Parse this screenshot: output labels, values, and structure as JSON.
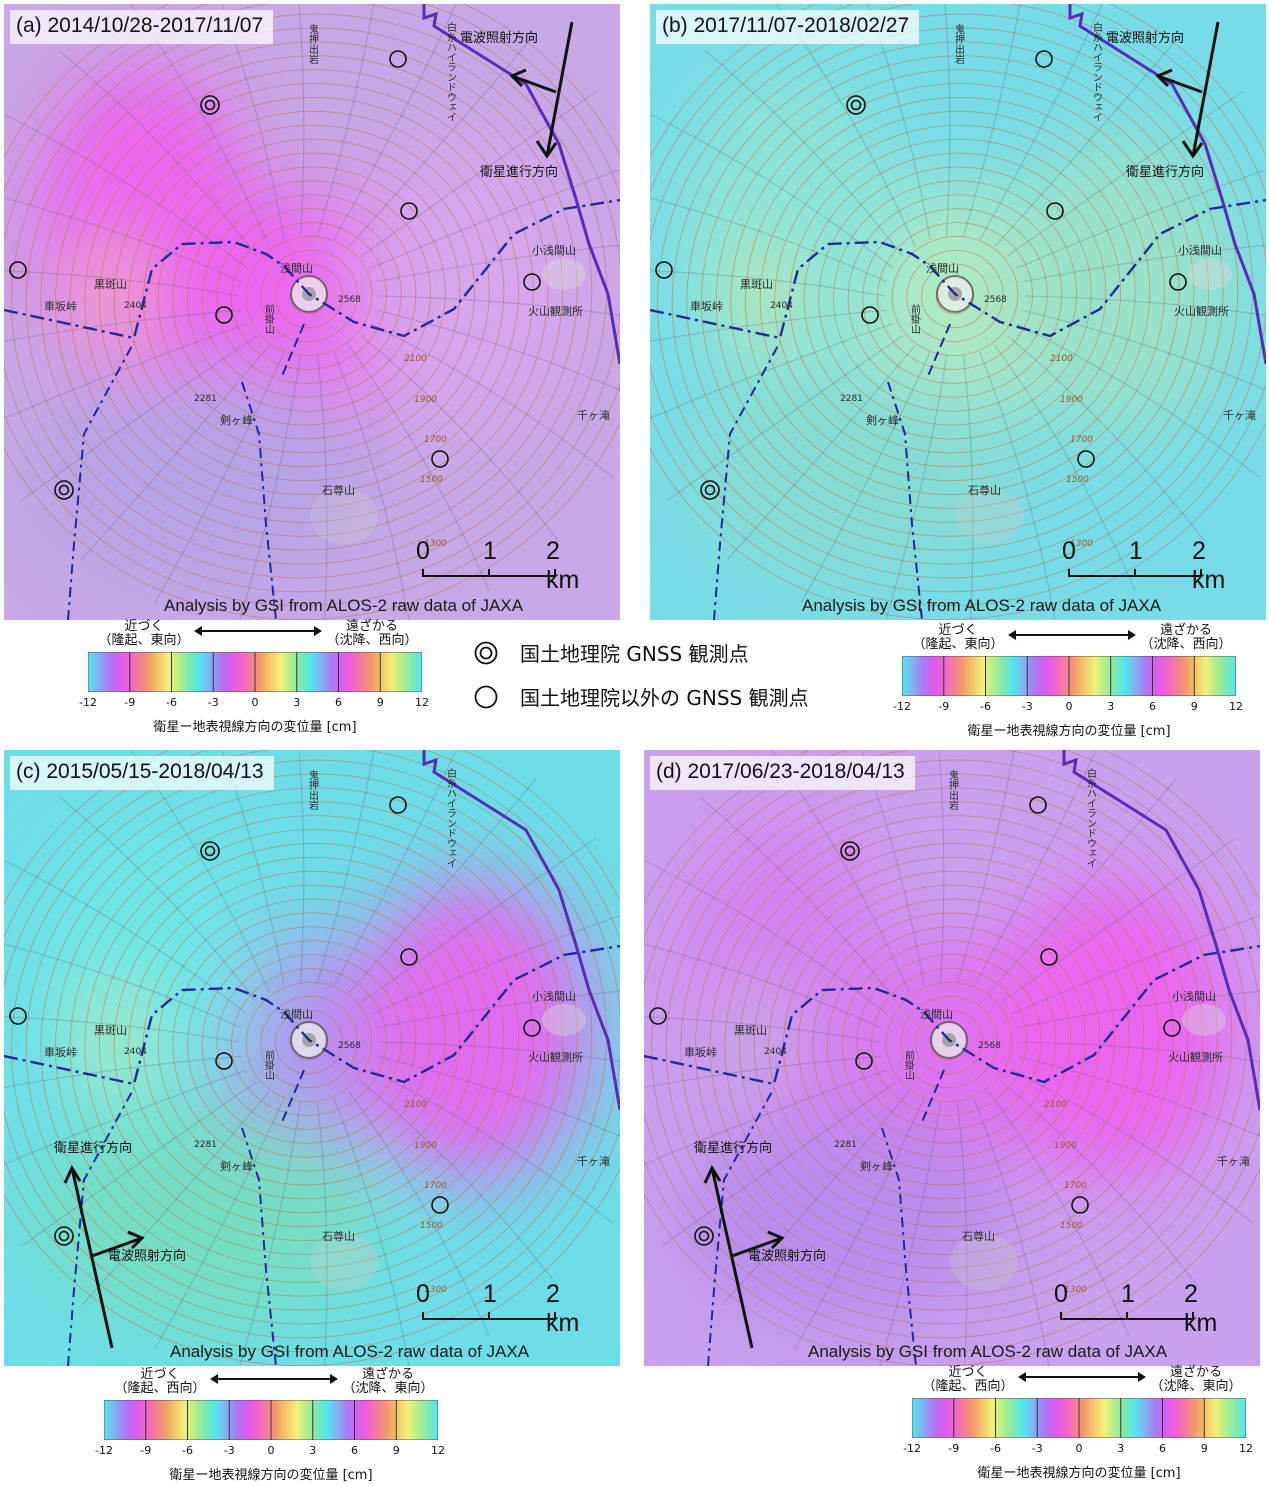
{
  "panels": [
    {
      "id": "a",
      "title": "(a) 2014/10/28-2017/11/07",
      "credit": "Analysis by GSI from ALOS-2 raw data of JAXA",
      "arrow_labels": {
        "illum": "電波照射方向",
        "track": "衛星進行方向"
      }
    },
    {
      "id": "b",
      "title": "(b) 2017/11/07-2018/02/27",
      "credit": "Analysis by GSI from ALOS-2 raw data of JAXA",
      "arrow_labels": {
        "illum": "電波照射方向",
        "track": "衛星進行方向"
      }
    },
    {
      "id": "c",
      "title": "(c) 2015/05/15-2018/04/13",
      "credit": "Analysis by GSI from ALOS-2 raw data of JAXA",
      "arrow_labels": {
        "illum": "電波照射方向",
        "track": "衛星進行方向"
      }
    },
    {
      "id": "d",
      "title": "(d) 2017/06/23-2018/04/13",
      "credit": "Analysis by GSI from ALOS-2 raw data of JAXA",
      "arrow_labels": {
        "illum": "電波照射方向",
        "track": "衛星進行方向"
      }
    }
  ],
  "place_names": {
    "asama": "浅間山",
    "kurofu": "黒斑山",
    "kurumazaka": "車坂峠",
    "tsurugi": "剣ヶ峰",
    "ishizon": "石尊山",
    "koasama": "小浅間山",
    "observatory": "火山観測所",
    "sengataki": "千ヶ滝",
    "onioshi": "鬼押出岩",
    "maekake": "前掛山",
    "shiraito": "白糸ハイランドウェイ"
  },
  "elevations": {
    "summit": "2568",
    "kurofu": "2404",
    "tsurugi": "2281"
  },
  "contour_labels": [
    "2100",
    "1900",
    "1700",
    "1500",
    "1300"
  ],
  "scale_bar": {
    "ticks": [
      "0",
      "1",
      "2 km"
    ]
  },
  "legends": {
    "ab": {
      "near": "近づく",
      "near_sub": "（隆起、東向）",
      "far": "遠ざかる",
      "far_sub": "（沈降、西向）",
      "ticks": [
        "-12",
        "-9",
        "-6",
        "-3",
        "0",
        "3",
        "6",
        "9",
        "12"
      ],
      "caption": "衛星ー地表視線方向の変位量 [cm]"
    },
    "cd": {
      "near": "近づく",
      "near_sub": "（隆起、西向）",
      "far": "遠ざかる",
      "far_sub": "（沈降、東向）",
      "ticks": [
        "-12",
        "-9",
        "-6",
        "-3",
        "0",
        "3",
        "6",
        "9",
        "12"
      ],
      "caption": "衛星ー地表視線方向の変位量 [cm]"
    }
  },
  "station_legend": {
    "gsi": "国土地理院 GNSS 観測点",
    "other": "国土地理院以外の GNSS 観測点"
  },
  "colors": {
    "cyan": "#52e6ee",
    "magenta": "#f05ff0",
    "yellow": "#f3f07a",
    "route": "#5a2ab8",
    "boundary": "#1f2a9a"
  }
}
